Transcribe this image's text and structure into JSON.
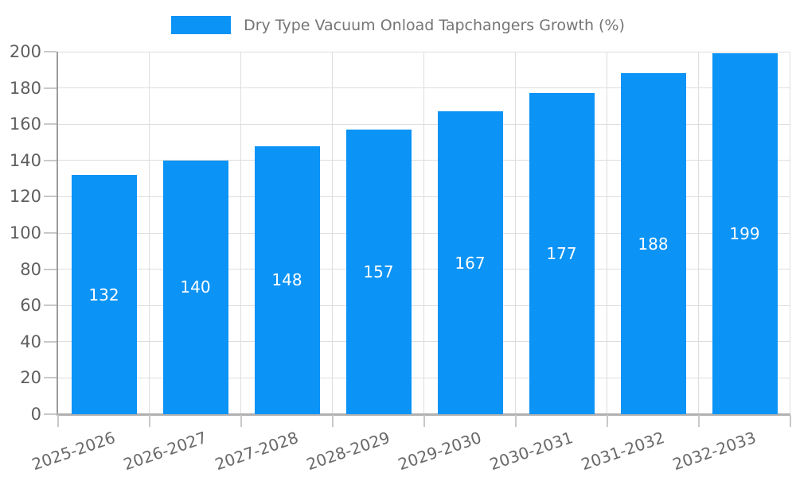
{
  "legend": {
    "label": "Dry Type Vacuum Onload Tapchangers Growth (%)"
  },
  "colors": {
    "bar": "#0b93f6",
    "gridline": "#dedede",
    "axis_left": "#9c9c9c",
    "axis_bottom": "#b0b0b0",
    "tick": "#c9c9c9",
    "y_label_text": "#5f5f5f",
    "x_label_text": "#696969",
    "legend_text": "#757575",
    "value_label_text": "#ffffff",
    "background": "#ffffff"
  },
  "chart_data": {
    "type": "bar",
    "title": "",
    "legend_entries": [
      "Dry Type Vacuum Onload Tapchangers Growth (%)"
    ],
    "legend_position": "top-center",
    "categories": [
      "2025-2026",
      "2026-2027",
      "2027-2028",
      "2028-2029",
      "2029-2030",
      "2030-2031",
      "2031-2032",
      "2032-2033"
    ],
    "values": [
      132,
      140,
      148,
      157,
      167,
      177,
      188,
      199
    ],
    "value_labels_shown": true,
    "value_label_position": "inside-center",
    "xlabel": "",
    "ylabel": "",
    "ylim": [
      0,
      200
    ],
    "yticks": [
      0,
      20,
      40,
      60,
      80,
      100,
      120,
      140,
      160,
      180,
      200
    ],
    "grid": "horizontal-and-vertical",
    "x_tick_label_rotation_deg": -19
  }
}
